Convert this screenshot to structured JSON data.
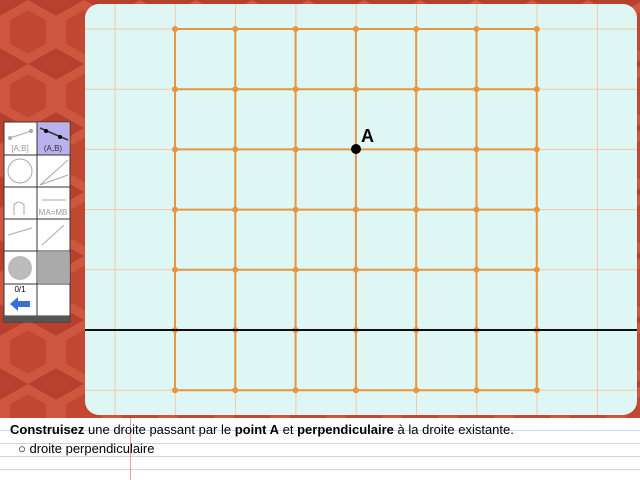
{
  "point_label": "A",
  "toolbar": {
    "segment": "[A;B]",
    "line": "(A,B)",
    "mediator": "MA=MB",
    "score": "0/1"
  },
  "instruction": {
    "parts": [
      {
        "text": "Construisez",
        "bold": true
      },
      {
        "text": " une droite passant par le ",
        "bold": false
      },
      {
        "text": "point A",
        "bold": true
      },
      {
        "text": " et ",
        "bold": false
      },
      {
        "text": "perpendiculaire",
        "bold": true
      },
      {
        "text": " à la droite existante.",
        "bold": false
      }
    ],
    "task": "droite perpendiculaire"
  }
}
